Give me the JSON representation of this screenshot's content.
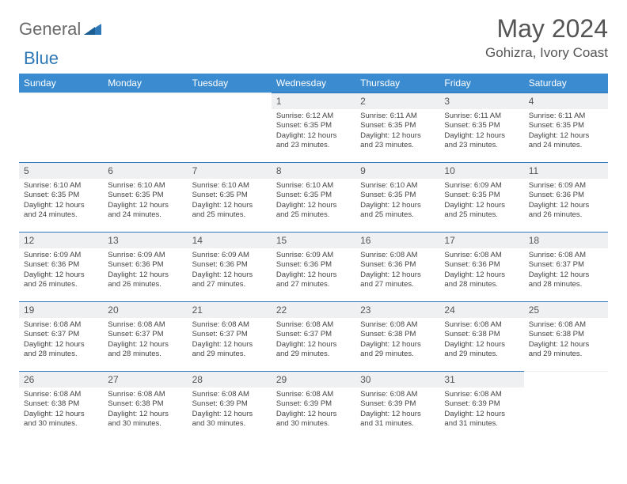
{
  "brand": {
    "general": "General",
    "blue": "Blue"
  },
  "title": "May 2024",
  "location": "Gohizra, Ivory Coast",
  "colors": {
    "header_bg": "#3b8bd0",
    "border": "#2f78b7",
    "daynum_bg": "#eef0f2",
    "text": "#444444",
    "title_text": "#555555"
  },
  "weekdays": [
    "Sunday",
    "Monday",
    "Tuesday",
    "Wednesday",
    "Thursday",
    "Friday",
    "Saturday"
  ],
  "weeks": [
    [
      null,
      null,
      null,
      {
        "n": "1",
        "sr": "6:12 AM",
        "ss": "6:35 PM",
        "dl": "12 hours and 23 minutes."
      },
      {
        "n": "2",
        "sr": "6:11 AM",
        "ss": "6:35 PM",
        "dl": "12 hours and 23 minutes."
      },
      {
        "n": "3",
        "sr": "6:11 AM",
        "ss": "6:35 PM",
        "dl": "12 hours and 23 minutes."
      },
      {
        "n": "4",
        "sr": "6:11 AM",
        "ss": "6:35 PM",
        "dl": "12 hours and 24 minutes."
      }
    ],
    [
      {
        "n": "5",
        "sr": "6:10 AM",
        "ss": "6:35 PM",
        "dl": "12 hours and 24 minutes."
      },
      {
        "n": "6",
        "sr": "6:10 AM",
        "ss": "6:35 PM",
        "dl": "12 hours and 24 minutes."
      },
      {
        "n": "7",
        "sr": "6:10 AM",
        "ss": "6:35 PM",
        "dl": "12 hours and 25 minutes."
      },
      {
        "n": "8",
        "sr": "6:10 AM",
        "ss": "6:35 PM",
        "dl": "12 hours and 25 minutes."
      },
      {
        "n": "9",
        "sr": "6:10 AM",
        "ss": "6:35 PM",
        "dl": "12 hours and 25 minutes."
      },
      {
        "n": "10",
        "sr": "6:09 AM",
        "ss": "6:35 PM",
        "dl": "12 hours and 25 minutes."
      },
      {
        "n": "11",
        "sr": "6:09 AM",
        "ss": "6:36 PM",
        "dl": "12 hours and 26 minutes."
      }
    ],
    [
      {
        "n": "12",
        "sr": "6:09 AM",
        "ss": "6:36 PM",
        "dl": "12 hours and 26 minutes."
      },
      {
        "n": "13",
        "sr": "6:09 AM",
        "ss": "6:36 PM",
        "dl": "12 hours and 26 minutes."
      },
      {
        "n": "14",
        "sr": "6:09 AM",
        "ss": "6:36 PM",
        "dl": "12 hours and 27 minutes."
      },
      {
        "n": "15",
        "sr": "6:09 AM",
        "ss": "6:36 PM",
        "dl": "12 hours and 27 minutes."
      },
      {
        "n": "16",
        "sr": "6:08 AM",
        "ss": "6:36 PM",
        "dl": "12 hours and 27 minutes."
      },
      {
        "n": "17",
        "sr": "6:08 AM",
        "ss": "6:36 PM",
        "dl": "12 hours and 28 minutes."
      },
      {
        "n": "18",
        "sr": "6:08 AM",
        "ss": "6:37 PM",
        "dl": "12 hours and 28 minutes."
      }
    ],
    [
      {
        "n": "19",
        "sr": "6:08 AM",
        "ss": "6:37 PM",
        "dl": "12 hours and 28 minutes."
      },
      {
        "n": "20",
        "sr": "6:08 AM",
        "ss": "6:37 PM",
        "dl": "12 hours and 28 minutes."
      },
      {
        "n": "21",
        "sr": "6:08 AM",
        "ss": "6:37 PM",
        "dl": "12 hours and 29 minutes."
      },
      {
        "n": "22",
        "sr": "6:08 AM",
        "ss": "6:37 PM",
        "dl": "12 hours and 29 minutes."
      },
      {
        "n": "23",
        "sr": "6:08 AM",
        "ss": "6:38 PM",
        "dl": "12 hours and 29 minutes."
      },
      {
        "n": "24",
        "sr": "6:08 AM",
        "ss": "6:38 PM",
        "dl": "12 hours and 29 minutes."
      },
      {
        "n": "25",
        "sr": "6:08 AM",
        "ss": "6:38 PM",
        "dl": "12 hours and 29 minutes."
      }
    ],
    [
      {
        "n": "26",
        "sr": "6:08 AM",
        "ss": "6:38 PM",
        "dl": "12 hours and 30 minutes."
      },
      {
        "n": "27",
        "sr": "6:08 AM",
        "ss": "6:38 PM",
        "dl": "12 hours and 30 minutes."
      },
      {
        "n": "28",
        "sr": "6:08 AM",
        "ss": "6:39 PM",
        "dl": "12 hours and 30 minutes."
      },
      {
        "n": "29",
        "sr": "6:08 AM",
        "ss": "6:39 PM",
        "dl": "12 hours and 30 minutes."
      },
      {
        "n": "30",
        "sr": "6:08 AM",
        "ss": "6:39 PM",
        "dl": "12 hours and 31 minutes."
      },
      {
        "n": "31",
        "sr": "6:08 AM",
        "ss": "6:39 PM",
        "dl": "12 hours and 31 minutes."
      },
      null
    ]
  ],
  "labels": {
    "sunrise": "Sunrise:",
    "sunset": "Sunset:",
    "daylight": "Daylight:"
  }
}
